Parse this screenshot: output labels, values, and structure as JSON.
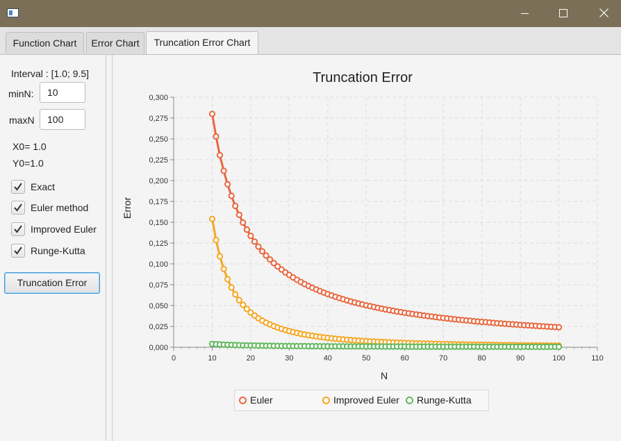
{
  "tabs": [
    "Function Chart",
    "Error Chart",
    "Truncation Error Chart"
  ],
  "panel": {
    "interval": "Interval : [1.0; 9.5]",
    "min_label": "minN:",
    "min_value": "10",
    "max_label": "maxN",
    "max_value": "100",
    "x0": "X0= 1.0",
    "y0": "Y0=1.0",
    "checkboxes": [
      "Exact",
      "Euler method",
      "Improved Euler",
      "Runge-Kutta"
    ],
    "button": "Truncation Error"
  },
  "chart_data": {
    "type": "line",
    "title": "Truncation Error",
    "xlabel": "N",
    "ylabel": "Error",
    "xlim": [
      0,
      110
    ],
    "ylim": [
      0,
      0.3
    ],
    "x_ticks": [
      "0",
      "10",
      "20",
      "30",
      "40",
      "50",
      "60",
      "70",
      "80",
      "90",
      "100",
      "110"
    ],
    "y_ticks": [
      "0,000",
      "0,025",
      "0,050",
      "0,075",
      "0,100",
      "0,125",
      "0,150",
      "0,175",
      "0,200",
      "0,225",
      "0,250",
      "0,275",
      "0,300"
    ],
    "x_range": [
      10,
      100
    ],
    "grid": true,
    "legend_position": "bottom",
    "series": [
      {
        "name": "Euler",
        "color": "#e8663d",
        "first": 0.28,
        "last": 0.024
      },
      {
        "name": "Improved Euler",
        "color": "#f5a623",
        "first": 0.154,
        "last": 0.002
      },
      {
        "name": "Runge-Kutta",
        "color": "#5fb75b",
        "first": 0.004,
        "last": 0.0005
      }
    ]
  }
}
